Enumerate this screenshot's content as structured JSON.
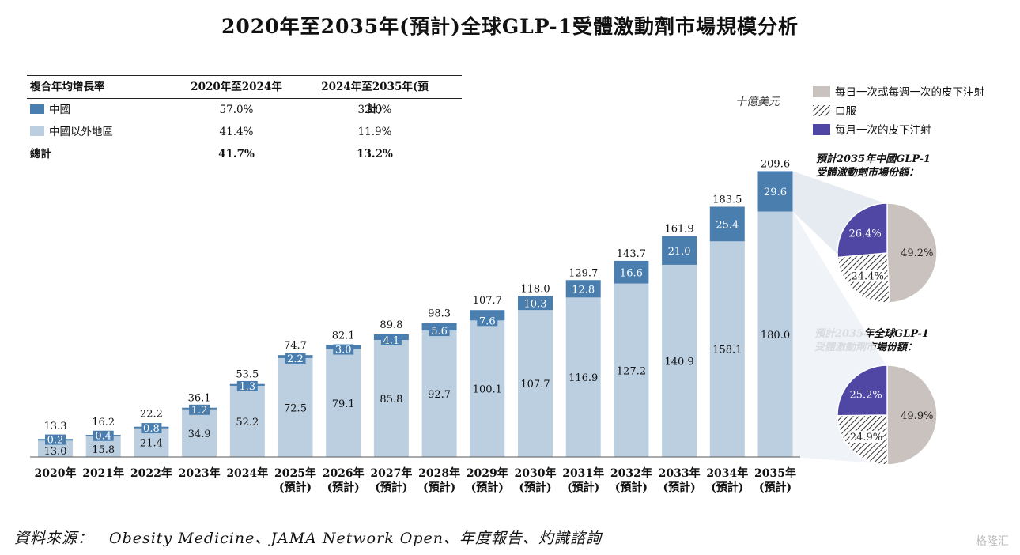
{
  "title": "2020年至2035年(預計)全球GLP-1受體激動劑市場規模分析",
  "cagr_table": {
    "header": [
      "複合年均增長率",
      "2020年至2024年",
      "2024年至2035年(預計)"
    ],
    "rows": [
      {
        "label": "中國",
        "v1": "57.0%",
        "v2": "32.6%",
        "color": "#4a7eae"
      },
      {
        "label": "中國以外地區",
        "v1": "41.4%",
        "v2": "11.9%",
        "color": "#bccfe1"
      }
    ],
    "total": {
      "label": "總計",
      "v1": "41.7%",
      "v2": "13.2%"
    }
  },
  "unit": "十億美元",
  "legend": [
    {
      "label": "每日一次或每週一次的皮下注射",
      "pattern": "solid",
      "color": "#c9c2bf"
    },
    {
      "label": "口服",
      "pattern": "hatch",
      "color": "#333333"
    },
    {
      "label": "每月一次的皮下注射",
      "pattern": "solid",
      "color": "#4f47a3"
    }
  ],
  "source": "資料來源：　Obesity Medicine、JAMA Network Open、年度報告、灼識諮詢",
  "watermark": "格隆汇",
  "chart_data": [
    {
      "type": "bar",
      "stacked": true,
      "categories": [
        "2020年",
        "2021年",
        "2022年",
        "2023年",
        "2024年",
        "2025年(預計)",
        "2026年(預計)",
        "2027年(預計)",
        "2028年(預計)",
        "2029年(預計)",
        "2030年(預計)",
        "2031年(預計)",
        "2032年(預計)",
        "2033年(預計)",
        "2034年(預計)",
        "2035年(預計)"
      ],
      "tick_labels": [
        [
          "2020年"
        ],
        [
          "2021年"
        ],
        [
          "2022年"
        ],
        [
          "2023年"
        ],
        [
          "2024年"
        ],
        [
          "2025年",
          "(預計)"
        ],
        [
          "2026年",
          "(預計)"
        ],
        [
          "2027年",
          "(預計)"
        ],
        [
          "2028年",
          "(預計)"
        ],
        [
          "2029年",
          "(預計)"
        ],
        [
          "2030年",
          "(預計)"
        ],
        [
          "2031年",
          "(預計)"
        ],
        [
          "2032年",
          "(預計)"
        ],
        [
          "2033年",
          "(預計)"
        ],
        [
          "2034年",
          "(預計)"
        ],
        [
          "2035年",
          "(預計)"
        ]
      ],
      "series": [
        {
          "name": "中國以外地區",
          "color": "#bccfe1",
          "values": [
            13.0,
            15.8,
            21.4,
            34.9,
            52.2,
            72.5,
            79.1,
            85.8,
            92.7,
            100.1,
            107.7,
            116.9,
            127.2,
            140.9,
            158.1,
            180.0
          ]
        },
        {
          "name": "中國",
          "color": "#4a7eae",
          "values": [
            0.2,
            0.4,
            0.8,
            1.2,
            1.3,
            2.2,
            3.0,
            4.1,
            5.6,
            7.6,
            10.3,
            12.8,
            16.6,
            21.0,
            25.4,
            29.6
          ]
        }
      ],
      "totals": [
        13.3,
        16.2,
        22.2,
        36.1,
        53.5,
        74.7,
        82.1,
        89.8,
        98.3,
        107.7,
        118.0,
        129.7,
        143.7,
        161.9,
        183.5,
        209.6
      ],
      "ylim": [
        0,
        210
      ]
    },
    {
      "type": "pie",
      "title": "預計2035年中國GLP-1受體激動劑市場份額：",
      "title_lines": [
        "預計2035年中國GLP-1",
        "受體激動劑市場份額："
      ],
      "slices": [
        {
          "label": "每日一次或每週一次的皮下注射",
          "value": 49.2,
          "text": "49.2%"
        },
        {
          "label": "口服",
          "value": 24.4,
          "text": "24.4%"
        },
        {
          "label": "每月一次的皮下注射",
          "value": 26.4,
          "text": "26.4%"
        }
      ]
    },
    {
      "type": "pie",
      "title": "預計2035年全球GLP-1受體激動劑市場份額：",
      "title_lines": [
        "預計2035年全球GLP-1",
        "受體激動劑市場份額："
      ],
      "slices": [
        {
          "label": "每日一次或每週一次的皮下注射",
          "value": 49.9,
          "text": "49.9%"
        },
        {
          "label": "口服",
          "value": 24.9,
          "text": "24.9%"
        },
        {
          "label": "每月一次的皮下注射",
          "value": 25.2,
          "text": "25.2%"
        }
      ]
    }
  ]
}
